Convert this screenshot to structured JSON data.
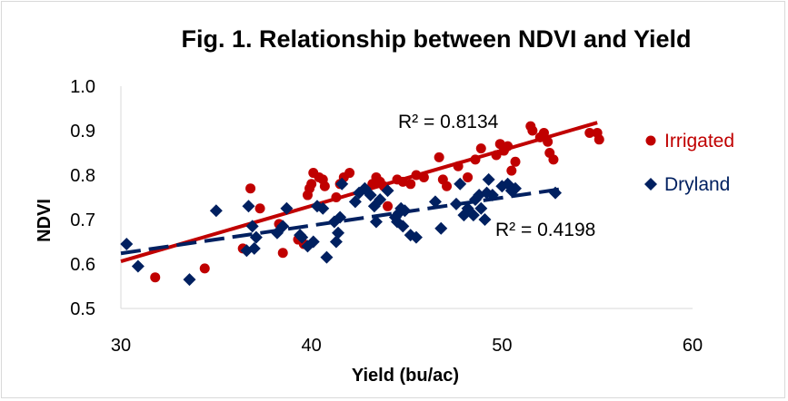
{
  "chart_data": {
    "type": "scatter",
    "title": "Fig. 1. Relationship between NDVI and Yield",
    "xlabel": "Yield (bu/ac)",
    "ylabel": "NDVI",
    "xlim": [
      30,
      60
    ],
    "ylim": [
      0.5,
      1.0
    ],
    "x_ticks": [
      "30",
      "40",
      "50",
      "60"
    ],
    "y_ticks": [
      "0.5",
      "0.6",
      "0.7",
      "0.8",
      "0.9",
      "1.0"
    ],
    "grid": false,
    "legend_position": "right",
    "series": [
      {
        "name": "Irrigated",
        "color": "#c00000",
        "marker": "circle",
        "trendline": {
          "x": [
            30,
            55
          ],
          "y": [
            0.606,
            0.918
          ],
          "style": "solid"
        },
        "r_squared_label": "R² = 0.8134",
        "points": [
          [
            31.8,
            0.57
          ],
          [
            34.4,
            0.59
          ],
          [
            36.4,
            0.635
          ],
          [
            36.8,
            0.77
          ],
          [
            37.3,
            0.725
          ],
          [
            38.3,
            0.69
          ],
          [
            38.5,
            0.625
          ],
          [
            39.3,
            0.655
          ],
          [
            39.6,
            0.645
          ],
          [
            39.8,
            0.755
          ],
          [
            39.9,
            0.77
          ],
          [
            40.0,
            0.78
          ],
          [
            40.1,
            0.805
          ],
          [
            40.4,
            0.795
          ],
          [
            40.6,
            0.79
          ],
          [
            40.7,
            0.775
          ],
          [
            41.3,
            0.75
          ],
          [
            41.5,
            0.78
          ],
          [
            41.7,
            0.795
          ],
          [
            42.0,
            0.805
          ],
          [
            43.2,
            0.78
          ],
          [
            43.4,
            0.795
          ],
          [
            43.6,
            0.785
          ],
          [
            43.8,
            0.775
          ],
          [
            44.0,
            0.73
          ],
          [
            44.5,
            0.79
          ],
          [
            44.8,
            0.785
          ],
          [
            45.2,
            0.78
          ],
          [
            45.5,
            0.8
          ],
          [
            45.9,
            0.795
          ],
          [
            46.7,
            0.84
          ],
          [
            46.9,
            0.79
          ],
          [
            47.1,
            0.775
          ],
          [
            47.7,
            0.82
          ],
          [
            48.2,
            0.795
          ],
          [
            48.6,
            0.835
          ],
          [
            48.9,
            0.86
          ],
          [
            49.7,
            0.845
          ],
          [
            49.9,
            0.87
          ],
          [
            50.1,
            0.855
          ],
          [
            50.3,
            0.865
          ],
          [
            50.5,
            0.81
          ],
          [
            50.7,
            0.83
          ],
          [
            51.5,
            0.91
          ],
          [
            51.6,
            0.9
          ],
          [
            52.0,
            0.885
          ],
          [
            52.2,
            0.895
          ],
          [
            52.4,
            0.875
          ],
          [
            52.7,
            0.835
          ],
          [
            54.6,
            0.895
          ],
          [
            55.0,
            0.895
          ],
          [
            55.1,
            0.88
          ],
          [
            52.5,
            0.85
          ]
        ]
      },
      {
        "name": "Dryland",
        "color": "#002060",
        "marker": "diamond",
        "trendline": {
          "x": [
            30,
            53
          ],
          "y": [
            0.624,
            0.768
          ],
          "style": "dashed"
        },
        "r_squared_label": "R² = 0.4198",
        "points": [
          [
            30.3,
            0.645
          ],
          [
            30.9,
            0.595
          ],
          [
            33.6,
            0.565
          ],
          [
            35.0,
            0.72
          ],
          [
            36.6,
            0.63
          ],
          [
            36.7,
            0.73
          ],
          [
            36.9,
            0.685
          ],
          [
            37.0,
            0.635
          ],
          [
            37.1,
            0.66
          ],
          [
            38.2,
            0.67
          ],
          [
            38.5,
            0.685
          ],
          [
            38.7,
            0.725
          ],
          [
            39.4,
            0.665
          ],
          [
            39.5,
            0.66
          ],
          [
            39.8,
            0.64
          ],
          [
            40.1,
            0.65
          ],
          [
            40.3,
            0.73
          ],
          [
            40.6,
            0.725
          ],
          [
            40.8,
            0.615
          ],
          [
            41.2,
            0.695
          ],
          [
            41.3,
            0.65
          ],
          [
            41.4,
            0.67
          ],
          [
            41.5,
            0.705
          ],
          [
            41.6,
            0.78
          ],
          [
            42.3,
            0.74
          ],
          [
            42.5,
            0.76
          ],
          [
            42.8,
            0.77
          ],
          [
            43.1,
            0.755
          ],
          [
            43.3,
            0.73
          ],
          [
            43.4,
            0.695
          ],
          [
            43.6,
            0.745
          ],
          [
            44.0,
            0.765
          ],
          [
            44.4,
            0.705
          ],
          [
            44.5,
            0.695
          ],
          [
            44.6,
            0.715
          ],
          [
            44.7,
            0.725
          ],
          [
            44.8,
            0.685
          ],
          [
            44.9,
            0.72
          ],
          [
            45.2,
            0.665
          ],
          [
            45.5,
            0.66
          ],
          [
            46.5,
            0.74
          ],
          [
            46.8,
            0.68
          ],
          [
            47.6,
            0.735
          ],
          [
            47.8,
            0.78
          ],
          [
            48.0,
            0.71
          ],
          [
            48.2,
            0.725
          ],
          [
            48.5,
            0.71
          ],
          [
            48.6,
            0.745
          ],
          [
            48.8,
            0.755
          ],
          [
            48.9,
            0.725
          ],
          [
            49.2,
            0.76
          ],
          [
            49.3,
            0.79
          ],
          [
            49.5,
            0.755
          ],
          [
            50.0,
            0.775
          ],
          [
            50.3,
            0.78
          ],
          [
            50.5,
            0.765
          ],
          [
            50.7,
            0.77
          ],
          [
            49.1,
            0.7
          ],
          [
            52.8,
            0.76
          ]
        ]
      }
    ]
  }
}
